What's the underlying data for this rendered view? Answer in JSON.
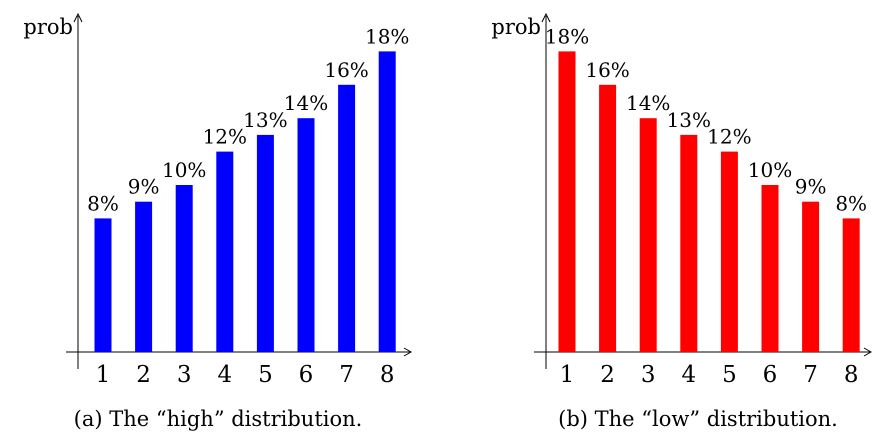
{
  "chart_data": [
    {
      "type": "bar",
      "ylabel": "prob",
      "categories": [
        "1",
        "2",
        "3",
        "4",
        "5",
        "6",
        "7",
        "8"
      ],
      "values": [
        8,
        9,
        10,
        12,
        13,
        14,
        16,
        18
      ],
      "data_labels": [
        "8%",
        "9%",
        "10%",
        "12%",
        "13%",
        "14%",
        "16%",
        "18%"
      ],
      "color": "#0000ff",
      "caption": "(a) The “high” distribution."
    },
    {
      "type": "bar",
      "ylabel": "prob",
      "categories": [
        "1",
        "2",
        "3",
        "4",
        "5",
        "6",
        "7",
        "8"
      ],
      "values": [
        18,
        16,
        14,
        13,
        12,
        10,
        9,
        8
      ],
      "data_labels": [
        "18%",
        "16%",
        "14%",
        "13%",
        "12%",
        "10%",
        "9%",
        "8%"
      ],
      "color": "#ff0000",
      "caption": "(b) The “low” distribution."
    }
  ]
}
